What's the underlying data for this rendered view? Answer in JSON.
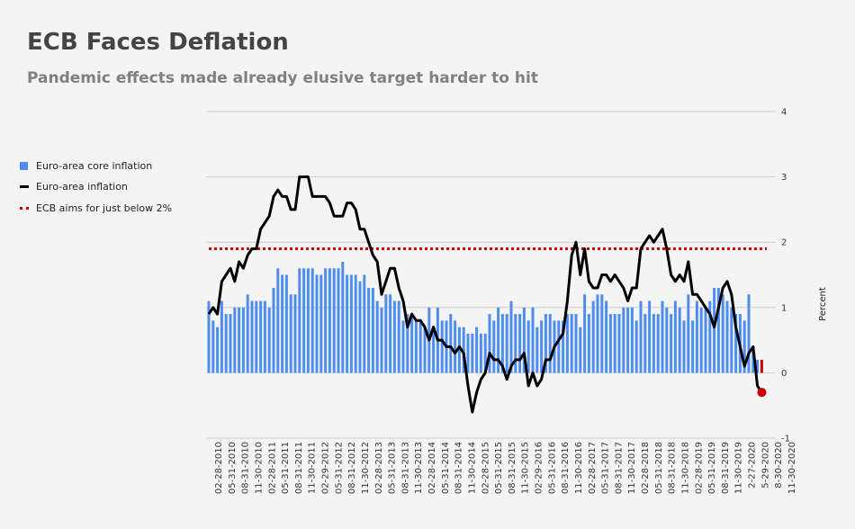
{
  "header": {
    "title": "ECB Faces Deflation",
    "subtitle": "Pandemic effects made already elusive target harder to hit"
  },
  "legend": {
    "core_label": "Euro-area core inflation",
    "headline_label": "Euro-area inflation",
    "target_label": "ECB aims for just below 2%"
  },
  "colors": {
    "core": "#4f8ef0",
    "headline": "#000000",
    "target": "#cc0000",
    "grid": "#cccccc",
    "latest_point": "#cc0000"
  },
  "chart_data": {
    "type": "bar+line",
    "title": "ECB Faces Deflation",
    "subtitle": "Pandemic effects made already elusive target harder to hit",
    "ylabel": "Percent",
    "ylim": [
      -1,
      4
    ],
    "yticks": [
      -1,
      0,
      1,
      2,
      3,
      4
    ],
    "grid": true,
    "legend_position": "left",
    "target_value": 1.9,
    "start_month": "2010-01",
    "x_tick_labels": [
      "02-28-2010",
      "05-31-2010",
      "08-31-2010",
      "11-30-2010",
      "02-28-2011",
      "05-31-2011",
      "08-31-2011",
      "11-30-2011",
      "02-29-2012",
      "05-31-2012",
      "08-31-2012",
      "11-30-2012",
      "02-28-2013",
      "05-31-2013",
      "08-31-2013",
      "11-30-2013",
      "02-28-2014",
      "05-31-2014",
      "08-31-2014",
      "11-30-2014",
      "02-28-2015",
      "05-31-2015",
      "08-31-2015",
      "11-30-2015",
      "02-29-2016",
      "05-31-2016",
      "08-31-2016",
      "11-30-2016",
      "02-28-2017",
      "05-31-2017",
      "08-31-2017",
      "11-30-2017",
      "02-28-2018",
      "05-31-2018",
      "08-31-2018",
      "11-30-2018",
      "02-28-2019",
      "05-31-2019",
      "08-31-2019",
      "11-30-2019",
      "2-27-2020",
      "5-29-2020",
      "8-30-2020",
      "11-30-2020"
    ],
    "series": [
      {
        "name": "Euro-area core inflation",
        "type": "bar",
        "values": [
          1.1,
          0.8,
          0.7,
          1.1,
          0.9,
          0.9,
          1.0,
          1.0,
          1.0,
          1.2,
          1.1,
          1.1,
          1.1,
          1.1,
          1.0,
          1.3,
          1.6,
          1.5,
          1.5,
          1.2,
          1.2,
          1.6,
          1.6,
          1.6,
          1.6,
          1.5,
          1.5,
          1.6,
          1.6,
          1.6,
          1.6,
          1.7,
          1.5,
          1.5,
          1.5,
          1.4,
          1.5,
          1.3,
          1.3,
          1.1,
          1.0,
          1.2,
          1.2,
          1.1,
          1.1,
          0.8,
          0.9,
          0.9,
          0.8,
          0.8,
          0.7,
          1.0,
          0.7,
          1.0,
          0.8,
          0.8,
          0.9,
          0.8,
          0.7,
          0.7,
          0.6,
          0.6,
          0.7,
          0.6,
          0.6,
          0.9,
          0.8,
          1.0,
          0.9,
          0.9,
          1.1,
          0.9,
          0.9,
          1.0,
          0.8,
          1.0,
          0.7,
          0.8,
          0.9,
          0.9,
          0.8,
          0.8,
          0.8,
          0.9,
          0.9,
          0.9,
          0.7,
          1.2,
          0.9,
          1.1,
          1.2,
          1.2,
          1.1,
          0.9,
          0.9,
          0.9,
          1.0,
          1.0,
          1.0,
          0.8,
          1.1,
          0.9,
          1.1,
          0.9,
          0.9,
          1.1,
          1.0,
          0.9,
          1.1,
          1.0,
          0.8,
          1.2,
          0.8,
          1.1,
          1.0,
          1.0,
          1.1,
          1.3,
          1.3,
          1.2,
          1.1,
          1.0,
          0.9,
          0.9,
          0.8,
          1.2,
          0.4,
          0.2,
          0.2
        ],
        "color": "#4f8ef0"
      },
      {
        "name": "Euro-area inflation",
        "type": "line",
        "values": [
          0.9,
          1.0,
          0.9,
          1.4,
          1.5,
          1.6,
          1.4,
          1.7,
          1.6,
          1.8,
          1.9,
          1.9,
          2.2,
          2.3,
          2.4,
          2.7,
          2.8,
          2.7,
          2.7,
          2.5,
          2.5,
          3.0,
          3.0,
          3.0,
          2.7,
          2.7,
          2.7,
          2.7,
          2.6,
          2.4,
          2.4,
          2.4,
          2.6,
          2.6,
          2.5,
          2.2,
          2.2,
          2.0,
          1.8,
          1.7,
          1.2,
          1.4,
          1.6,
          1.6,
          1.3,
          1.1,
          0.7,
          0.9,
          0.8,
          0.8,
          0.7,
          0.5,
          0.7,
          0.5,
          0.5,
          0.4,
          0.4,
          0.3,
          0.4,
          0.3,
          -0.2,
          -0.6,
          -0.3,
          -0.1,
          0.0,
          0.3,
          0.2,
          0.2,
          0.1,
          -0.1,
          0.1,
          0.2,
          0.2,
          0.3,
          -0.2,
          0.0,
          -0.2,
          -0.1,
          0.2,
          0.2,
          0.4,
          0.5,
          0.6,
          1.1,
          1.8,
          2.0,
          1.5,
          1.9,
          1.4,
          1.3,
          1.3,
          1.5,
          1.5,
          1.4,
          1.5,
          1.4,
          1.3,
          1.1,
          1.3,
          1.3,
          1.9,
          2.0,
          2.1,
          2.0,
          2.1,
          2.2,
          1.9,
          1.5,
          1.4,
          1.5,
          1.4,
          1.7,
          1.2,
          1.2,
          1.1,
          1.0,
          0.9,
          0.7,
          1.0,
          1.3,
          1.4,
          1.2,
          0.7,
          0.4,
          0.1,
          0.3,
          0.4,
          -0.2,
          -0.3,
          -0.3
        ],
        "color": "#000000"
      }
    ]
  }
}
